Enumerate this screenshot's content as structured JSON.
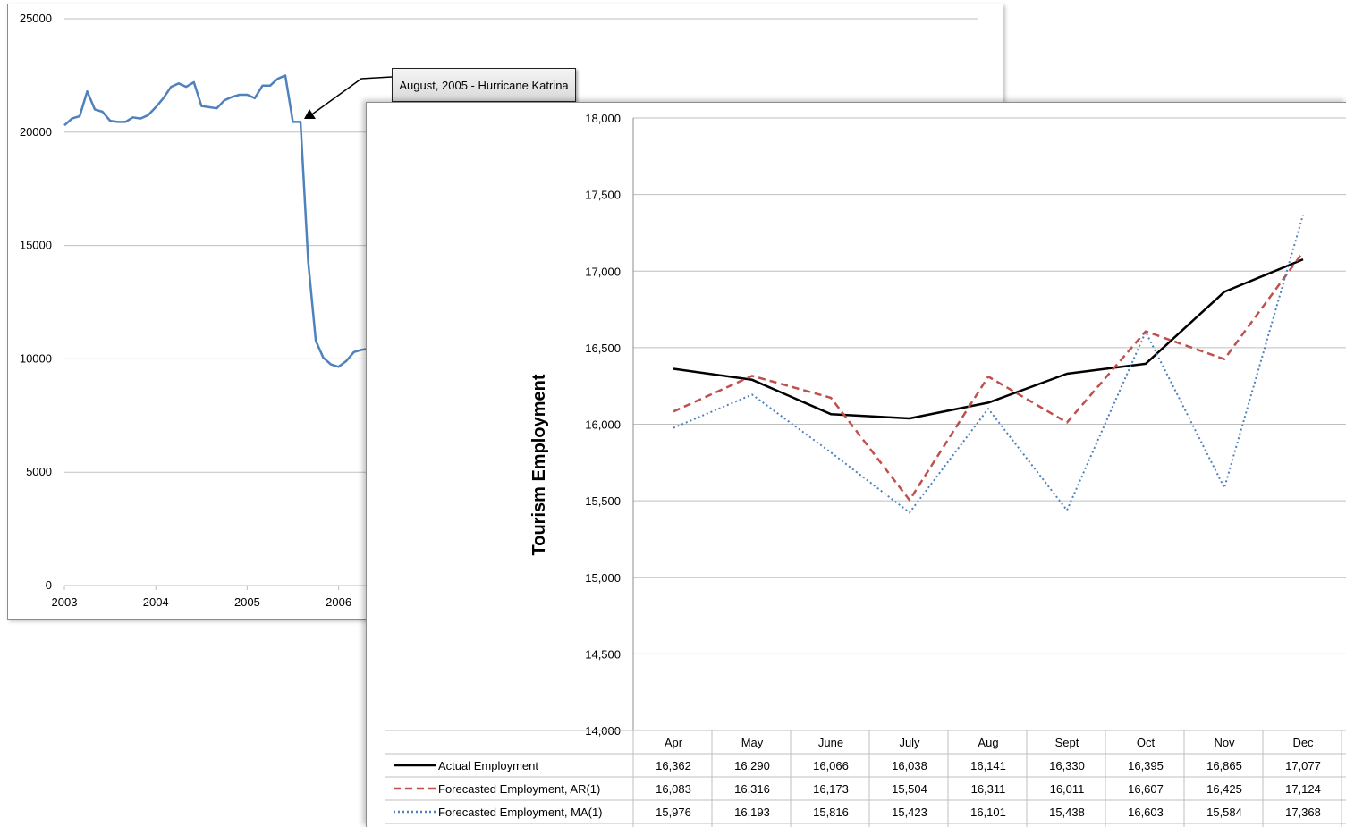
{
  "annotation": {
    "text": "August, 2005 - Hurricane Katrina"
  },
  "chart_data": [
    {
      "type": "line",
      "x_labels": [
        "2003",
        "2004",
        "2005",
        "2006"
      ],
      "y_ticks": [
        "25000",
        "20000",
        "15000",
        "10000",
        "5000",
        "0"
      ],
      "ylim": [
        0,
        25000
      ],
      "grid": true,
      "series": [
        {
          "color": "#4f81bd",
          "x": [
            2003.0,
            2003.083,
            2003.167,
            2003.25,
            2003.333,
            2003.417,
            2003.5,
            2003.583,
            2003.667,
            2003.75,
            2003.833,
            2003.917,
            2004.0,
            2004.083,
            2004.167,
            2004.25,
            2004.333,
            2004.417,
            2004.5,
            2004.583,
            2004.667,
            2004.75,
            2004.833,
            2004.917,
            2005.0,
            2005.083,
            2005.167,
            2005.25,
            2005.333,
            2005.417,
            2005.5,
            2005.583,
            2005.667,
            2005.75,
            2005.833,
            2005.917,
            2006.0,
            2006.083,
            2006.167,
            2006.25,
            2006.333,
            2006.417,
            2006.5
          ],
          "values": [
            20300,
            20600,
            20700,
            21800,
            21000,
            20900,
            20500,
            20450,
            20450,
            20650,
            20600,
            20750,
            21100,
            21500,
            22000,
            22150,
            22000,
            22200,
            21150,
            21100,
            21050,
            21400,
            21550,
            21650,
            21650,
            21500,
            22050,
            22050,
            22350,
            22500,
            20450,
            20450,
            14300,
            10800,
            10050,
            9750,
            9650,
            9900,
            10300,
            10400,
            10450,
            10500,
            10500
          ]
        }
      ]
    },
    {
      "type": "line",
      "categories": [
        "Apr",
        "May",
        "June",
        "July",
        "Aug",
        "Sept",
        "Oct",
        "Nov",
        "Dec"
      ],
      "ylabel": "Tourism Employment",
      "ylim": [
        14000,
        18000
      ],
      "y_ticks": [
        "18,000",
        "17,500",
        "17,000",
        "16,500",
        "16,000",
        "15,500",
        "15,000",
        "14,500",
        "14,000"
      ],
      "grid": true,
      "legend": "bottom data table",
      "series": [
        {
          "name": "Actual Employment",
          "color": "#000000",
          "style": "solid",
          "values": [
            16362,
            16290,
            16066,
            16038,
            16141,
            16330,
            16395,
            16865,
            17077
          ],
          "labels": [
            "16,362",
            "16,290",
            "16,066",
            "16,038",
            "16,141",
            "16,330",
            "16,395",
            "16,865",
            "17,077"
          ]
        },
        {
          "name": "Forecasted Employment, AR(1)",
          "color": "#c0504d",
          "style": "dashed",
          "values": [
            16083,
            16316,
            16173,
            15504,
            16311,
            16011,
            16607,
            16425,
            17124
          ],
          "labels": [
            "16,083",
            "16,316",
            "16,173",
            "15,504",
            "16,311",
            "16,011",
            "16,607",
            "16,425",
            "17,124"
          ]
        },
        {
          "name": "Forecasted Employment, MA(1)",
          "color": "#4f81bd",
          "style": "dotted",
          "values": [
            15976,
            16193,
            15816,
            15423,
            16101,
            15438,
            16603,
            15584,
            17368
          ],
          "labels": [
            "15,976",
            "16,193",
            "15,816",
            "15,423",
            "16,101",
            "15,438",
            "16,603",
            "15,584",
            "17,368"
          ]
        }
      ]
    }
  ]
}
